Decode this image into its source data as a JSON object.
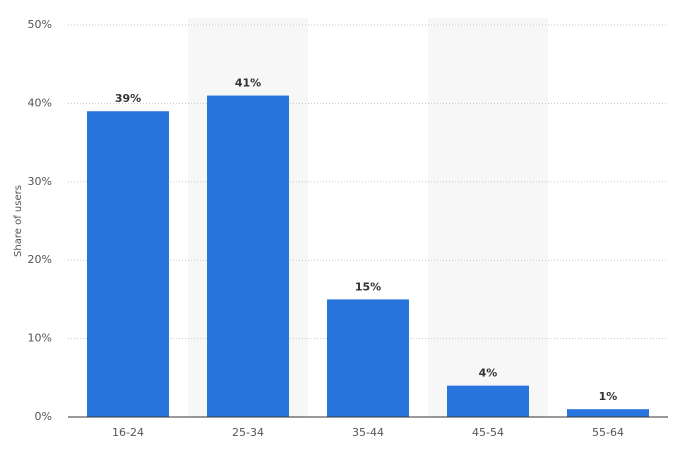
{
  "chart_data": {
    "type": "bar",
    "y_label": "Share of users",
    "categories": [
      "16-24",
      "25-34",
      "35-44",
      "45-54",
      "55-64"
    ],
    "values": [
      39,
      41,
      15,
      4,
      1
    ],
    "value_labels": [
      "39%",
      "41%",
      "15%",
      "4%",
      "1%"
    ],
    "color": "#2876dd",
    "ylim": [
      0,
      50
    ],
    "yticks": [
      {
        "value": 0,
        "label": "0%"
      },
      {
        "value": 10,
        "label": "10%"
      },
      {
        "value": 20,
        "label": "20%"
      },
      {
        "value": 30,
        "label": "30%"
      },
      {
        "value": 40,
        "label": "40%"
      },
      {
        "value": 50,
        "label": "50%"
      }
    ],
    "grid": true
  }
}
